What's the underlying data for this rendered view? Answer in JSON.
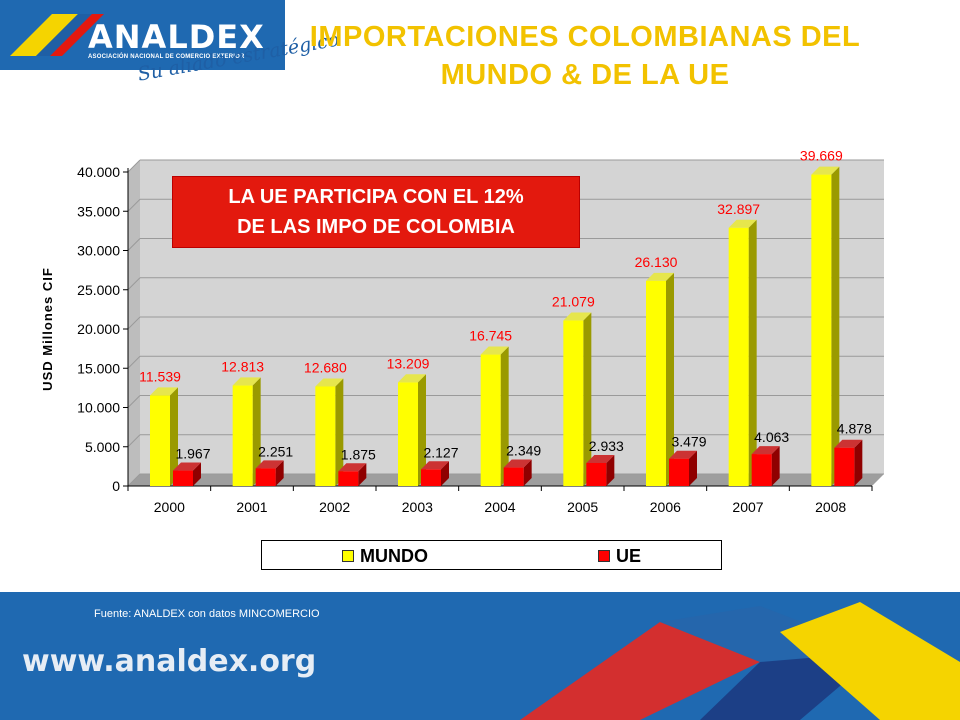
{
  "header": {
    "logo_text": "ANALDEX",
    "logo_subtitle": "ASOCIACIÓN NACIONAL DE COMERCIO EXTERIOR",
    "slogan": "Su aliado estratégico",
    "title_line1": "IMPORTACIONES COLOMBIANAS DEL",
    "title_line2": "MUNDO & DE LA UE"
  },
  "callout": {
    "line1": "LA UE PARTICIPA CON EL 12%",
    "line2": "DE LAS IMPO DE COLOMBIA"
  },
  "colors": {
    "mundo": "#ffff00",
    "ue": "#ff0000",
    "title": "#f2c200",
    "footer": "#1f69b1",
    "callout": "#e3190e"
  },
  "chart_data": {
    "type": "bar",
    "ylabel": "USD Millones CIF",
    "ylim": [
      0,
      40000
    ],
    "yticks": [
      "0",
      "5.000",
      "10.000",
      "15.000",
      "20.000",
      "25.000",
      "30.000",
      "35.000",
      "40.000"
    ],
    "categories": [
      "2000",
      "2001",
      "2002",
      "2003",
      "2004",
      "2005",
      "2006",
      "2007",
      "2008"
    ],
    "series": [
      {
        "name": "MUNDO",
        "values": [
          11539,
          12813,
          12680,
          13209,
          16745,
          21079,
          26130,
          32897,
          39669
        ],
        "labels": [
          "11.539",
          "12.813",
          "12.680",
          "13.209",
          "16.745",
          "21.079",
          "26.130",
          "32.897",
          "39.669"
        ]
      },
      {
        "name": "UE",
        "values": [
          1967,
          2251,
          1875,
          2127,
          2349,
          2933,
          3479,
          4063,
          4878
        ],
        "labels": [
          "1.967",
          "2.251",
          "1.875",
          "2.127",
          "2.349",
          "2.933",
          "3.479",
          "4.063",
          "4.878"
        ]
      }
    ],
    "grid": true,
    "legend": "bottom"
  },
  "legend": {
    "mundo_label": "MUNDO",
    "ue_label": "UE"
  },
  "footer": {
    "source": "Fuente: ANALDEX con datos MINCOMERCIO",
    "website": "www.analdex.org"
  }
}
